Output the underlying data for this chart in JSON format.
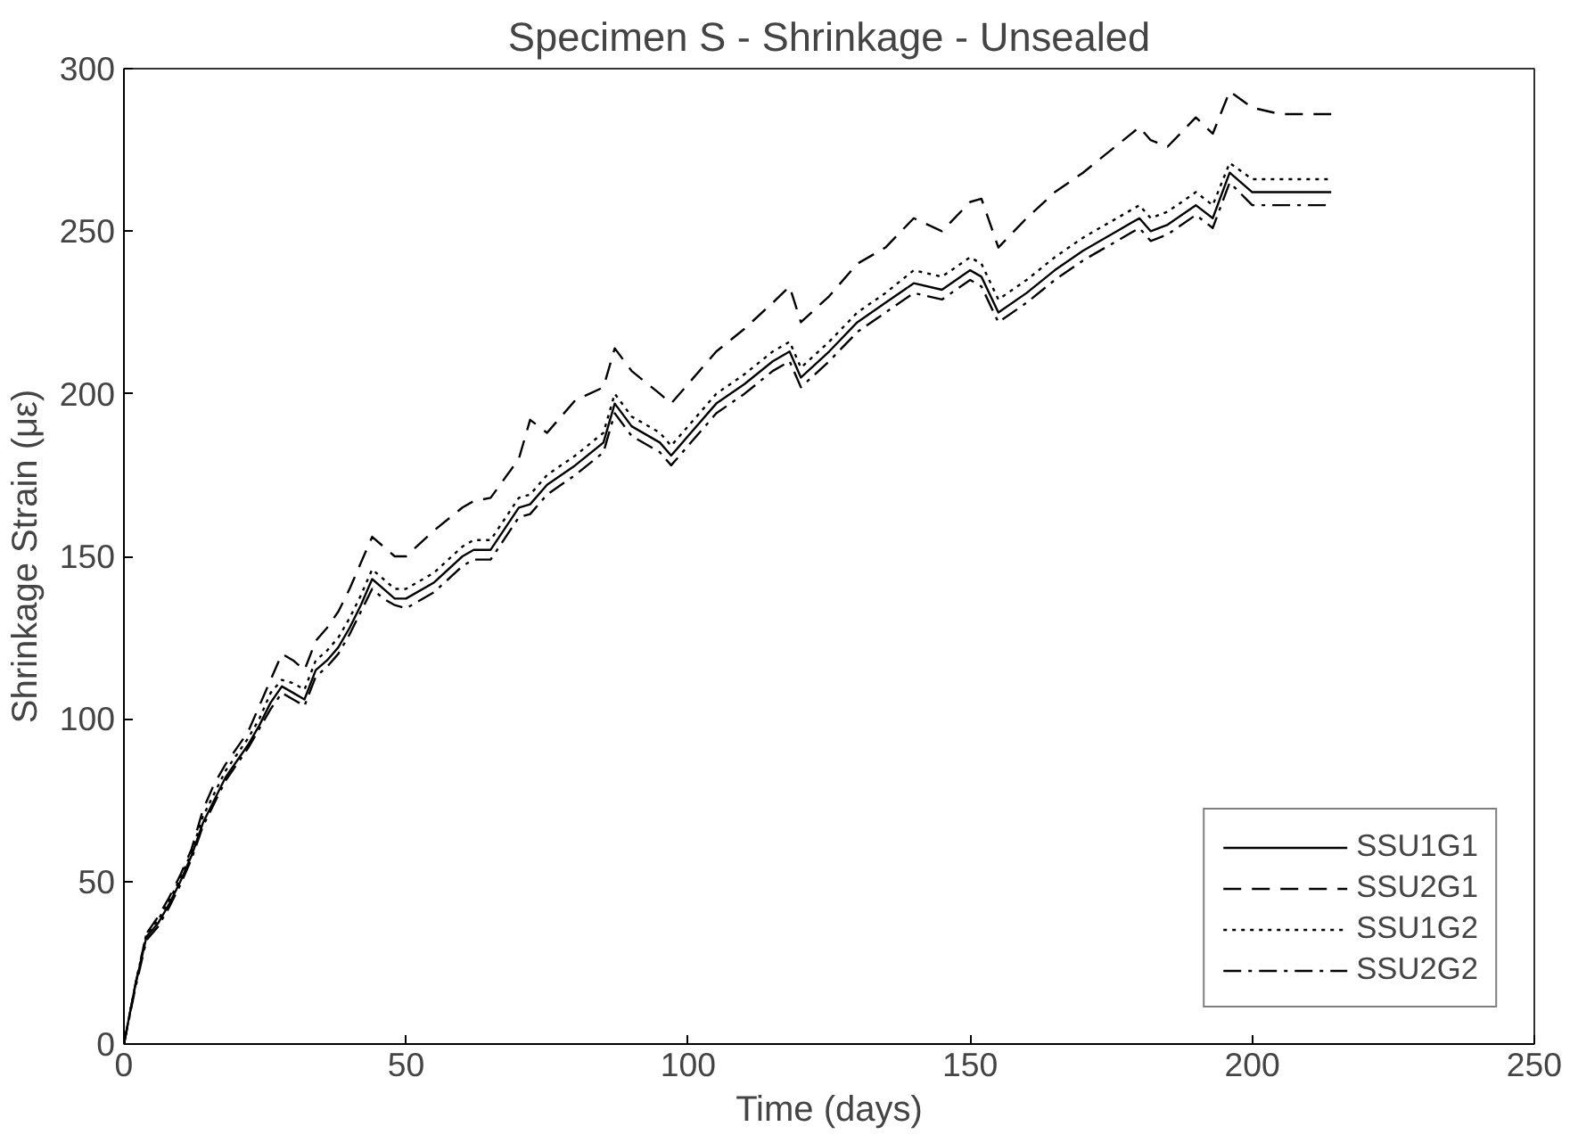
{
  "chart_data": {
    "type": "line",
    "title": "Specimen S - Shrinkage - Unsealed",
    "xlabel": "Time (days)",
    "ylabel": "Shrinkage Strain (με)",
    "x": [
      0,
      2,
      4,
      6,
      8,
      10,
      12,
      14,
      16,
      18,
      20,
      22,
      24,
      26,
      28,
      30,
      32,
      34,
      36,
      38,
      40,
      42,
      44,
      46,
      48,
      50,
      55,
      60,
      62,
      65,
      70,
      72,
      75,
      80,
      85,
      87,
      90,
      95,
      97,
      100,
      105,
      110,
      115,
      118,
      120,
      125,
      130,
      135,
      140,
      145,
      150,
      152,
      155,
      160,
      165,
      170,
      175,
      180,
      182,
      185,
      190,
      193,
      196,
      200,
      205,
      214
    ],
    "series": [
      {
        "name": "SSU1G1",
        "color": "#000000",
        "line_style": "solid",
        "values": [
          0,
          18,
          33,
          37,
          43,
          50,
          58,
          68,
          75,
          82,
          87,
          92,
          98,
          105,
          110,
          108,
          106,
          115,
          118,
          122,
          128,
          135,
          143,
          140,
          137,
          137,
          142,
          150,
          152,
          152,
          165,
          166,
          172,
          178,
          185,
          197,
          190,
          185,
          181,
          187,
          197,
          203,
          210,
          213,
          205,
          213,
          222,
          228,
          234,
          232,
          238,
          236,
          225,
          231,
          238,
          244,
          249,
          254,
          250,
          252,
          258,
          254,
          268,
          262,
          262,
          262
        ]
      },
      {
        "name": "SSU2G1",
        "color": "#000000",
        "line_style": "dashed",
        "values": [
          0,
          18,
          34,
          39,
          45,
          52,
          60,
          72,
          80,
          86,
          91,
          96,
          104,
          112,
          120,
          118,
          115,
          124,
          128,
          133,
          140,
          148,
          156,
          153,
          150,
          150,
          158,
          165,
          167,
          168,
          180,
          192,
          188,
          198,
          202,
          214,
          207,
          200,
          197,
          203,
          213,
          220,
          228,
          233,
          222,
          230,
          240,
          245,
          254,
          250,
          259,
          260,
          245,
          254,
          262,
          268,
          275,
          282,
          278,
          276,
          285,
          280,
          293,
          288,
          286,
          286
        ]
      },
      {
        "name": "SSU1G2",
        "color": "#000000",
        "line_style": "dotted",
        "values": [
          0,
          18,
          34,
          38,
          44,
          51,
          59,
          70,
          77,
          84,
          89,
          94,
          100,
          108,
          112,
          111,
          109,
          118,
          121,
          125,
          131,
          138,
          146,
          143,
          140,
          140,
          145,
          153,
          155,
          155,
          168,
          169,
          175,
          181,
          188,
          200,
          193,
          188,
          184,
          190,
          200,
          206,
          213,
          216,
          208,
          216,
          225,
          231,
          238,
          236,
          242,
          240,
          229,
          235,
          242,
          248,
          253,
          258,
          254,
          256,
          262,
          258,
          271,
          266,
          266,
          266
        ]
      },
      {
        "name": "SSU2G2",
        "color": "#000000",
        "line_style": "dashdot",
        "values": [
          0,
          17,
          32,
          36,
          42,
          49,
          57,
          67,
          74,
          81,
          86,
          91,
          97,
          103,
          108,
          106,
          104,
          113,
          116,
          120,
          126,
          133,
          140,
          137,
          135,
          134,
          139,
          147,
          149,
          149,
          162,
          163,
          169,
          175,
          182,
          194,
          187,
          182,
          178,
          184,
          194,
          200,
          207,
          210,
          202,
          210,
          219,
          225,
          231,
          229,
          235,
          233,
          222,
          228,
          235,
          241,
          246,
          251,
          247,
          249,
          255,
          251,
          265,
          258,
          258,
          258
        ]
      }
    ],
    "xlim": [
      0,
      250
    ],
    "xticks": [
      0,
      50,
      100,
      150,
      200,
      250
    ],
    "ylim": [
      0,
      300
    ],
    "yticks": [
      0,
      50,
      100,
      150,
      200,
      250,
      300
    ],
    "grid": false,
    "legend": "bottom right"
  }
}
